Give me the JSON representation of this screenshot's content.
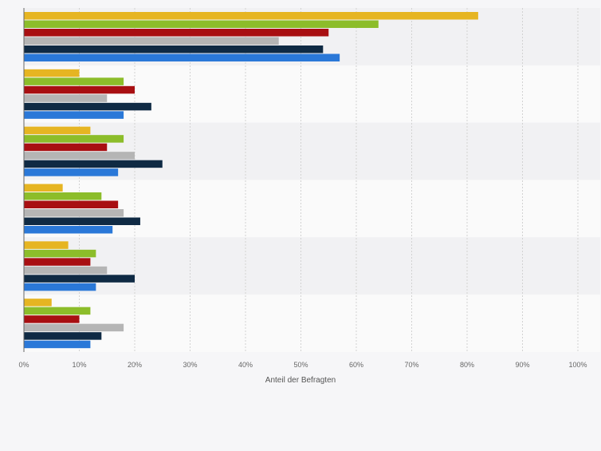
{
  "chart_data": {
    "type": "bar",
    "orientation": "horizontal",
    "xlabel": "Anteil der Befragten",
    "xlim": [
      0,
      100
    ],
    "x_ticks": [
      "0%",
      "10%",
      "20%",
      "30%",
      "40%",
      "50%",
      "60%",
      "70%",
      "80%",
      "90%",
      "100%"
    ],
    "grid": true,
    "legend": "none",
    "num_groups": 6,
    "series": [
      {
        "color": "#e6b522",
        "values": [
          82,
          10,
          12,
          7,
          8,
          5
        ]
      },
      {
        "color": "#8cbd2a",
        "values": [
          64,
          18,
          18,
          14,
          13,
          12
        ]
      },
      {
        "color": "#a80f12",
        "values": [
          55,
          20,
          15,
          17,
          12,
          10
        ]
      },
      {
        "color": "#b5b5b5",
        "values": [
          46,
          15,
          20,
          18,
          15,
          18
        ]
      },
      {
        "color": "#0f2a44",
        "values": [
          54,
          23,
          25,
          21,
          20,
          14
        ]
      },
      {
        "color": "#2a78d8",
        "values": [
          57,
          18,
          17,
          16,
          13,
          12
        ]
      }
    ]
  }
}
